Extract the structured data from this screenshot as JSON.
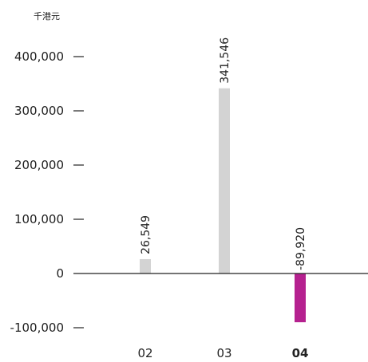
{
  "chart_data": {
    "type": "bar",
    "unit": "千港元",
    "categories": [
      "02",
      "03",
      "04"
    ],
    "values": [
      26549,
      341546,
      -89920
    ],
    "data_labels": [
      "26,549",
      "341,546",
      "-89,920"
    ],
    "highlight_category": "04",
    "yticks": [
      -100000,
      0,
      100000,
      200000,
      300000,
      400000
    ],
    "ytick_labels": [
      "-100,000",
      "0",
      "100,000",
      "200,000",
      "300,000",
      "400,000"
    ],
    "ylim": [
      -125000,
      440000
    ],
    "grid": false,
    "legend": "none",
    "colors": {
      "positive": "#d3d3d3",
      "negative": "#b5218f",
      "axis": "#222222",
      "text": "#222222"
    }
  }
}
